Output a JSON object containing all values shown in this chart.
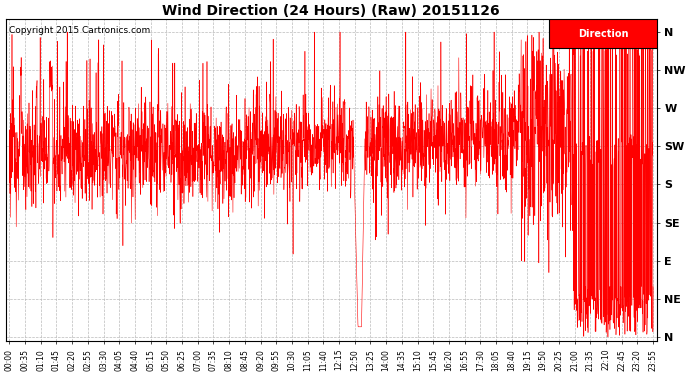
{
  "title": "Wind Direction (24 Hours) (Raw) 20151126",
  "copyright": "Copyright 2015 Cartronics.com",
  "legend_label": "Direction",
  "legend_bg": "#ff0000",
  "legend_text_color": "#ffffff",
  "line_color": "#ff0000",
  "line_color_dark": "#222222",
  "bg_color": "#ffffff",
  "grid_color": "#bbbbbb",
  "ytick_labels": [
    "N",
    "NE",
    "E",
    "SE",
    "S",
    "SW",
    "W",
    "NW",
    "N"
  ],
  "ytick_values": [
    0,
    45,
    90,
    135,
    180,
    225,
    270,
    315,
    360
  ],
  "ylim": [
    -5,
    375
  ],
  "figsize": [
    6.9,
    3.75
  ],
  "dpi": 100
}
